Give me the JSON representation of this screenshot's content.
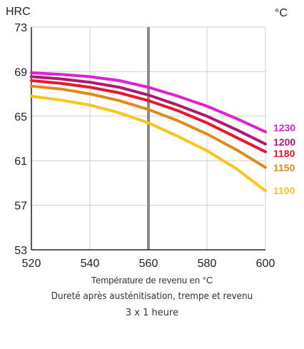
{
  "chart_data": {
    "type": "line",
    "ylabel": "HRC",
    "series_unit": "°C",
    "xlabel": "Température de revenu en °C",
    "caption_line1": "Dureté après austénitisation, trempe et revenu",
    "caption_line2": "3 x 1 heure",
    "xlim": [
      520,
      600
    ],
    "ylim": [
      53,
      73
    ],
    "x_ticks": [
      "520",
      "540",
      "560",
      "580",
      "600"
    ],
    "y_ticks": [
      "53",
      "57",
      "61",
      "65",
      "69",
      "73"
    ],
    "grid": true,
    "reference_line_x": 560,
    "x": [
      520,
      530,
      540,
      550,
      560,
      570,
      580,
      590,
      600
    ],
    "series": [
      {
        "name": "1230",
        "color": "#e020d8",
        "values": [
          68.9,
          68.75,
          68.55,
          68.2,
          67.6,
          66.8,
          65.9,
          64.8,
          63.6
        ]
      },
      {
        "name": "1200",
        "color": "#b0196e",
        "values": [
          68.55,
          68.35,
          68.05,
          67.6,
          66.9,
          66.0,
          65.0,
          63.8,
          62.5
        ]
      },
      {
        "name": "1180",
        "color": "#e5192e",
        "values": [
          68.2,
          67.95,
          67.6,
          67.1,
          66.4,
          65.5,
          64.4,
          63.1,
          61.8
        ]
      },
      {
        "name": "1150",
        "color": "#e08a1c",
        "values": [
          67.7,
          67.45,
          67.0,
          66.4,
          65.6,
          64.6,
          63.4,
          62.0,
          60.4
        ]
      },
      {
        "name": "1100",
        "color": "#fbc51a",
        "values": [
          66.8,
          66.45,
          66.0,
          65.3,
          64.4,
          63.2,
          61.9,
          60.3,
          58.3
        ]
      }
    ]
  }
}
